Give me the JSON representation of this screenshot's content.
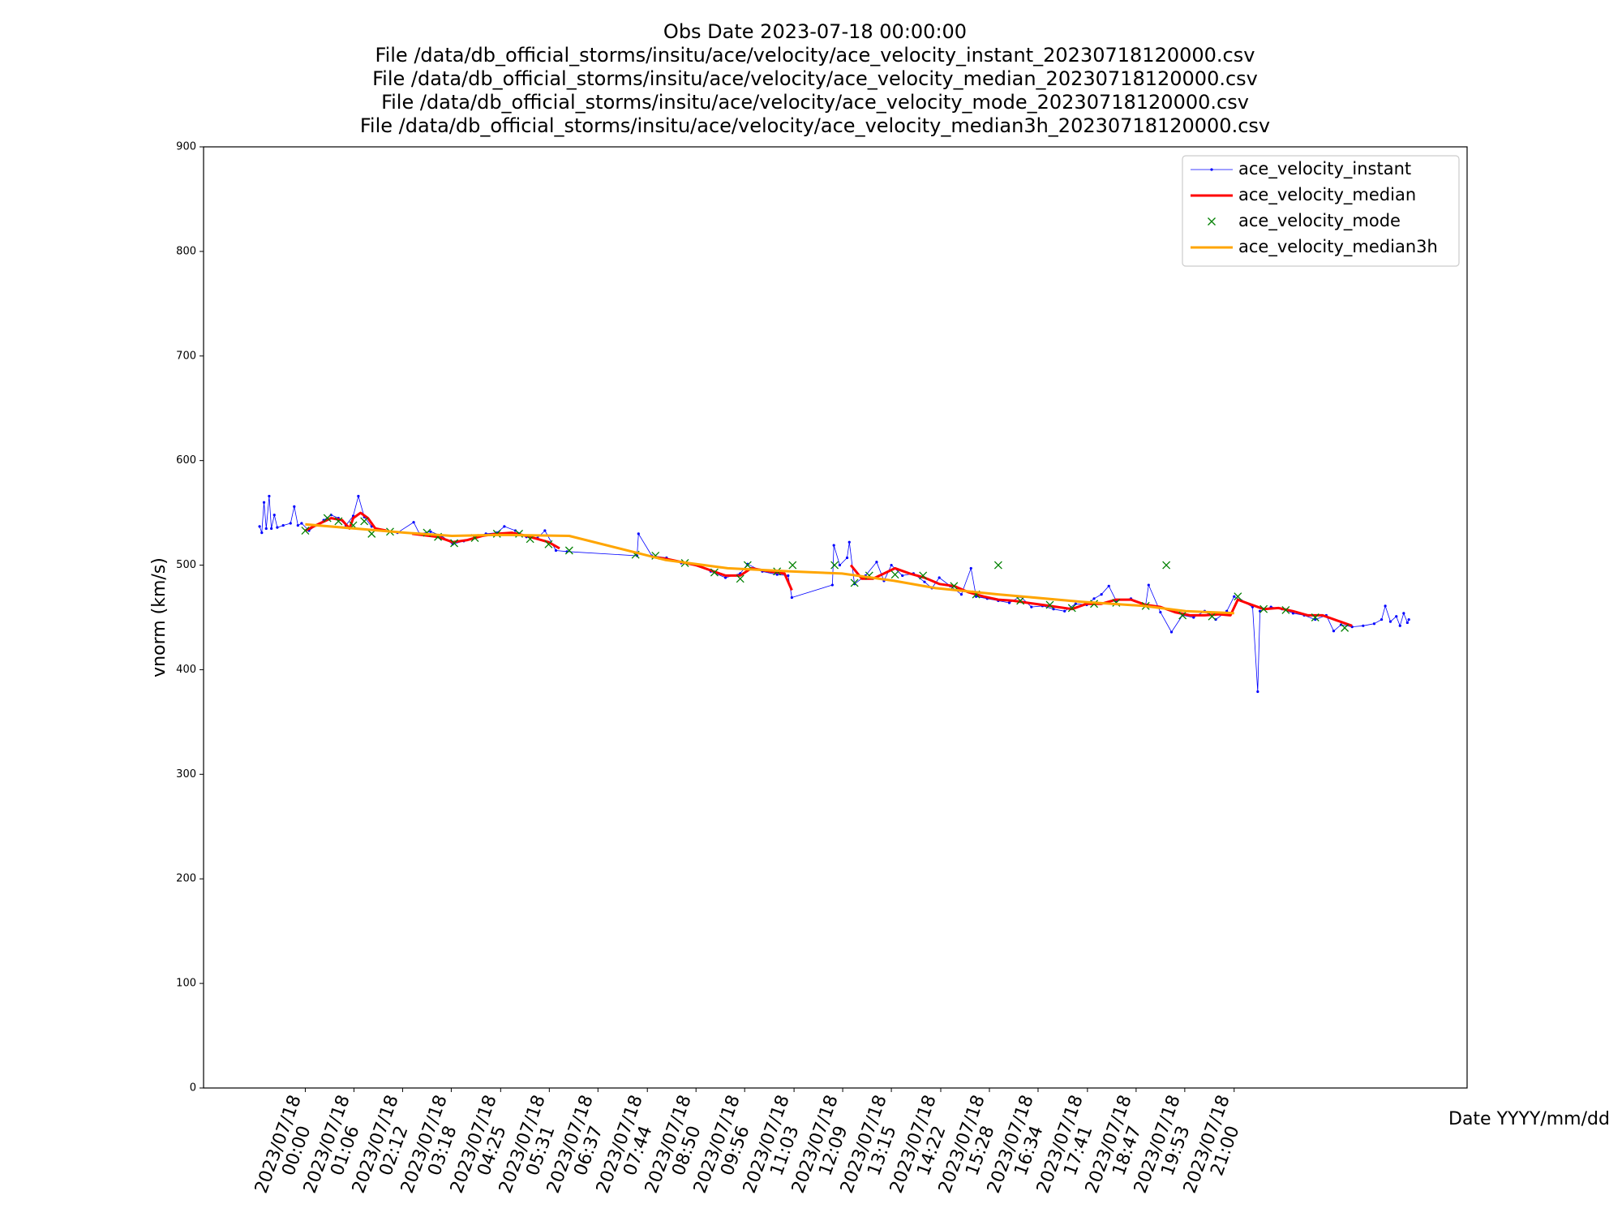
{
  "chart_data": {
    "type": "line",
    "title": [
      "Obs Date 2023-07-18 00:00:00",
      "File /data/db_official_storms/insitu/ace/velocity/ace_velocity_instant_20230718120000.csv",
      "File /data/db_official_storms/insitu/ace/velocity/ace_velocity_median_20230718120000.csv",
      "File /data/db_official_storms/insitu/ace/velocity/ace_velocity_mode_20230718120000.csv",
      "File /data/db_official_storms/insitu/ace/velocity/ace_velocity_median3h_20230718120000.csv"
    ],
    "y_label": "vnorm (km/s)",
    "x_label": "Date YYYY/mm/dd",
    "ylim": [
      0,
      900
    ],
    "yticks": [
      0,
      100,
      200,
      300,
      400,
      500,
      600,
      700,
      800,
      900
    ],
    "xlim": [
      "2023-07-17T21:42",
      "2023-07-19T02:16"
    ],
    "xticks": [
      {
        "value": "2023-07-18T00:00",
        "label": "2023/07/18\n00:00"
      },
      {
        "value": "2023-07-18T01:06",
        "label": "2023/07/18\n01:06"
      },
      {
        "value": "2023-07-18T02:12",
        "label": "2023/07/18\n02:12"
      },
      {
        "value": "2023-07-18T03:18",
        "label": "2023/07/18\n03:18"
      },
      {
        "value": "2023-07-18T04:25",
        "label": "2023/07/18\n04:25"
      },
      {
        "value": "2023-07-18T05:31",
        "label": "2023/07/18\n05:31"
      },
      {
        "value": "2023-07-18T06:37",
        "label": "2023/07/18\n06:37"
      },
      {
        "value": "2023-07-18T07:44",
        "label": "2023/07/18\n07:44"
      },
      {
        "value": "2023-07-18T08:50",
        "label": "2023/07/18\n08:50"
      },
      {
        "value": "2023-07-18T09:56",
        "label": "2023/07/18\n09:56"
      },
      {
        "value": "2023-07-18T11:03",
        "label": "2023/07/18\n11:03"
      },
      {
        "value": "2023-07-18T12:09",
        "label": "2023/07/18\n12:09"
      },
      {
        "value": "2023-07-18T13:15",
        "label": "2023/07/18\n13:15"
      },
      {
        "value": "2023-07-18T14:22",
        "label": "2023/07/18\n14:22"
      },
      {
        "value": "2023-07-18T15:28",
        "label": "2023/07/18\n15:28"
      },
      {
        "value": "2023-07-18T16:34",
        "label": "2023/07/18\n16:34"
      },
      {
        "value": "2023-07-18T17:41",
        "label": "2023/07/18\n17:41"
      },
      {
        "value": "2023-07-18T18:47",
        "label": "2023/07/18\n18:47"
      },
      {
        "value": "2023-07-18T19:53",
        "label": "2023/07/18\n19:53"
      },
      {
        "value": "2023-07-18T21:00",
        "label": "2023/07/18\n21:00"
      }
    ],
    "legend": "upper right",
    "series": [
      {
        "name": "ace_velocity_instant",
        "color": "#0000ff",
        "style": "line-dots",
        "x": [
          "2023-07-17T22:58",
          "2023-07-17T23:01",
          "2023-07-17T23:04",
          "2023-07-17T23:07",
          "2023-07-17T23:11",
          "2023-07-17T23:14",
          "2023-07-17T23:18",
          "2023-07-17T23:22",
          "2023-07-17T23:30",
          "2023-07-17T23:40",
          "2023-07-17T23:45",
          "2023-07-17T23:50",
          "2023-07-17T23:55",
          "2023-07-18T00:05",
          "2023-07-18T00:15",
          "2023-07-18T00:25",
          "2023-07-18T00:35",
          "2023-07-18T00:45",
          "2023-07-18T00:55",
          "2023-07-18T01:05",
          "2023-07-18T01:12",
          "2023-07-18T01:20",
          "2023-07-18T01:30",
          "2023-07-18T01:45",
          "2023-07-18T02:05",
          "2023-07-18T02:27",
          "2023-07-18T02:35",
          "2023-07-18T02:50",
          "2023-07-18T03:05",
          "2023-07-18T03:20",
          "2023-07-18T03:35",
          "2023-07-18T03:50",
          "2023-07-18T04:05",
          "2023-07-18T04:20",
          "2023-07-18T04:30",
          "2023-07-18T04:45",
          "2023-07-18T05:00",
          "2023-07-18T05:15",
          "2023-07-18T05:25",
          "2023-07-18T05:40",
          "2023-07-18T05:55",
          "2023-07-18T07:30",
          "2023-07-18T07:32",
          "2023-07-18T07:50",
          "2023-07-18T08:10",
          "2023-07-18T08:30",
          "2023-07-18T08:50",
          "2023-07-18T09:10",
          "2023-07-18T09:30",
          "2023-07-18T09:50",
          "2023-07-18T10:00",
          "2023-07-18T10:20",
          "2023-07-18T10:40",
          "2023-07-18T10:55",
          "2023-07-18T11:00",
          "2023-07-18T11:55",
          "2023-07-18T11:57",
          "2023-07-18T12:05",
          "2023-07-18T12:15",
          "2023-07-18T12:18",
          "2023-07-18T12:25",
          "2023-07-18T12:40",
          "2023-07-18T12:55",
          "2023-07-18T13:05",
          "2023-07-18T13:15",
          "2023-07-18T13:30",
          "2023-07-18T13:45",
          "2023-07-18T14:00",
          "2023-07-18T14:10",
          "2023-07-18T14:20",
          "2023-07-18T14:35",
          "2023-07-18T14:50",
          "2023-07-18T15:03",
          "2023-07-18T15:10",
          "2023-07-18T15:25",
          "2023-07-18T15:40",
          "2023-07-18T15:55",
          "2023-07-18T16:10",
          "2023-07-18T16:25",
          "2023-07-18T16:40",
          "2023-07-18T16:55",
          "2023-07-18T17:10",
          "2023-07-18T17:25",
          "2023-07-18T17:40",
          "2023-07-18T17:50",
          "2023-07-18T18:00",
          "2023-07-18T18:10",
          "2023-07-18T18:20",
          "2023-07-18T18:40",
          "2023-07-18T19:00",
          "2023-07-18T19:04",
          "2023-07-18T19:20",
          "2023-07-18T19:35",
          "2023-07-18T19:50",
          "2023-07-18T20:05",
          "2023-07-18T20:20",
          "2023-07-18T20:35",
          "2023-07-18T20:50",
          "2023-07-18T21:00",
          "2023-07-18T21:10",
          "2023-07-18T21:25",
          "2023-07-18T21:32",
          "2023-07-18T21:35",
          "2023-07-18T21:50",
          "2023-07-18T22:05",
          "2023-07-18T22:20",
          "2023-07-18T22:35",
          "2023-07-18T22:50",
          "2023-07-18T23:05",
          "2023-07-18T23:15",
          "2023-07-18T23:25",
          "2023-07-18T23:40",
          "2023-07-18T23:55",
          "2023-07-19T00:10",
          "2023-07-19T00:20",
          "2023-07-19T00:25",
          "2023-07-19T00:32",
          "2023-07-19T00:40",
          "2023-07-19T00:45",
          "2023-07-19T00:50",
          "2023-07-19T00:55",
          "2023-07-19T00:57"
        ],
        "values": [
          537,
          531,
          560,
          535,
          566,
          535,
          548,
          536,
          538,
          540,
          556,
          538,
          540,
          533,
          538,
          543,
          548,
          545,
          538,
          547,
          566,
          546,
          537,
          533,
          531,
          541,
          530,
          532,
          528,
          520,
          523,
          527,
          530,
          531,
          537,
          533,
          527,
          526,
          533,
          514,
          513,
          509,
          530,
          509,
          507,
          502,
          500,
          494,
          488,
          492,
          501,
          494,
          491,
          490,
          469,
          481,
          519,
          500,
          507,
          522,
          482,
          490,
          503,
          485,
          500,
          490,
          492,
          484,
          478,
          488,
          480,
          472,
          497,
          470,
          468,
          466,
          464,
          470,
          460,
          461,
          458,
          456,
          463,
          462,
          468,
          472,
          480,
          466,
          468,
          462,
          481,
          455,
          436,
          452,
          450,
          456,
          448,
          456,
          470,
          466,
          460,
          379,
          456,
          460,
          458,
          454,
          452,
          448,
          452,
          437,
          443,
          441,
          442,
          444,
          448,
          461,
          446,
          451,
          442,
          454,
          445,
          448
        ]
      },
      {
        "name": "ace_velocity_median",
        "color": "#ff0000",
        "style": "line",
        "x": [
          "2023-07-18T00:00",
          "2023-07-18T00:20",
          "2023-07-18T00:35",
          "2023-07-18T00:50",
          "2023-07-18T01:00",
          "2023-07-18T01:05",
          "2023-07-18T01:15",
          "2023-07-18T01:25",
          "2023-07-18T01:35",
          "2023-07-18T01:50",
          null,
          "2023-07-18T02:25",
          "2023-07-18T03:00",
          "2023-07-18T03:20",
          "2023-07-18T03:40",
          "2023-07-18T04:00",
          "2023-07-18T04:20",
          "2023-07-18T04:40",
          "2023-07-18T05:00",
          "2023-07-18T05:15",
          "2023-07-18T05:30",
          "2023-07-18T05:45",
          null,
          "2023-07-18T07:50",
          "2023-07-18T08:10",
          "2023-07-18T08:30",
          "2023-07-18T08:50",
          "2023-07-18T09:10",
          "2023-07-18T09:30",
          "2023-07-18T09:50",
          "2023-07-18T10:05",
          "2023-07-18T10:30",
          "2023-07-18T10:50",
          "2023-07-18T11:00",
          null,
          "2023-07-18T12:20",
          "2023-07-18T12:35",
          "2023-07-18T12:50",
          "2023-07-18T13:05",
          "2023-07-18T13:20",
          "2023-07-18T13:40",
          "2023-07-18T14:00",
          "2023-07-18T14:20",
          "2023-07-18T14:40",
          "2023-07-18T15:00",
          "2023-07-18T15:20",
          "2023-07-18T15:40",
          "2023-07-18T16:00",
          "2023-07-18T16:20",
          "2023-07-18T16:40",
          "2023-07-18T17:00",
          "2023-07-18T17:20",
          "2023-07-18T17:40",
          "2023-07-18T18:00",
          "2023-07-18T18:20",
          "2023-07-18T18:40",
          "2023-07-18T19:00",
          "2023-07-18T19:20",
          "2023-07-18T19:40",
          "2023-07-18T20:00",
          "2023-07-18T20:20",
          "2023-07-18T20:40",
          "2023-07-18T20:55",
          "2023-07-18T21:05",
          "2023-07-18T21:20",
          "2023-07-18T21:40",
          "2023-07-18T22:00",
          "2023-07-18T22:20",
          "2023-07-18T22:40",
          "2023-07-18T23:00",
          "2023-07-18T23:20",
          "2023-07-18T23:40"
        ],
        "values": [
          533,
          540,
          545,
          543,
          535,
          545,
          550,
          545,
          535,
          533,
          null,
          530,
          527,
          522,
          524,
          528,
          530,
          531,
          528,
          525,
          522,
          516,
          null,
          508,
          506,
          503,
          500,
          495,
          490,
          490,
          497,
          494,
          492,
          476,
          null,
          500,
          487,
          487,
          492,
          497,
          492,
          488,
          482,
          480,
          474,
          470,
          467,
          466,
          464,
          462,
          460,
          458,
          463,
          463,
          467,
          467,
          462,
          460,
          455,
          452,
          452,
          453,
          452,
          467,
          463,
          458,
          459,
          456,
          452,
          452,
          447,
          442
        ]
      },
      {
        "name": "ace_velocity_mode",
        "color": "#008000",
        "style": "x-markers",
        "x": [
          "2023-07-18T00:00",
          "2023-07-18T00:30",
          "2023-07-18T00:45",
          "2023-07-18T01:05",
          "2023-07-18T01:20",
          "2023-07-18T01:30",
          "2023-07-18T01:55",
          "2023-07-18T02:45",
          "2023-07-18T03:00",
          "2023-07-18T03:22",
          "2023-07-18T03:50",
          "2023-07-18T04:20",
          "2023-07-18T04:50",
          "2023-07-18T05:05",
          "2023-07-18T05:30",
          "2023-07-18T05:58",
          "2023-07-18T07:28",
          "2023-07-18T07:55",
          "2023-07-18T08:35",
          "2023-07-18T09:15",
          "2023-07-18T09:50",
          "2023-07-18T10:00",
          "2023-07-18T10:40",
          "2023-07-18T11:01",
          "2023-07-18T11:58",
          "2023-07-18T12:25",
          "2023-07-18T12:45",
          "2023-07-18T13:20",
          "2023-07-18T13:58",
          "2023-07-18T14:40",
          "2023-07-18T15:10",
          "2023-07-18T15:40",
          "2023-07-18T16:10",
          "2023-07-18T16:50",
          "2023-07-18T17:20",
          "2023-07-18T17:50",
          "2023-07-18T18:20",
          "2023-07-18T19:00",
          "2023-07-18T19:28",
          "2023-07-18T19:50",
          "2023-07-18T20:30",
          "2023-07-18T21:05",
          "2023-07-18T21:40",
          "2023-07-18T22:10",
          "2023-07-18T22:50",
          "2023-07-18T23:30"
        ],
        "values": [
          533,
          545,
          542,
          538,
          542,
          530,
          532,
          531,
          527,
          521,
          526,
          530,
          530,
          525,
          520,
          514,
          510,
          509,
          502,
          493,
          487,
          500,
          494,
          500,
          500,
          483,
          490,
          491,
          490,
          480,
          472,
          500,
          466,
          462,
          459,
          463,
          464,
          461,
          500,
          452,
          451,
          470,
          458,
          457,
          450,
          440
        ]
      },
      {
        "name": "ace_velocity_median3h",
        "color": "#ffa500",
        "style": "line",
        "x": [
          "2023-07-18T00:00",
          "2023-07-18T02:16",
          "2023-07-18T03:19",
          "2023-07-18T04:22",
          "2023-07-18T05:58",
          "2023-07-18T08:08",
          "2023-07-18T09:33",
          "2023-07-18T10:58",
          "2023-07-18T12:08",
          "2023-07-18T13:19",
          "2023-07-18T14:15",
          "2023-07-18T15:40",
          "2023-07-18T17:33",
          "2023-07-18T18:57",
          "2023-07-18T19:54",
          "2023-07-18T21:00"
        ],
        "values": [
          539,
          531,
          528,
          529,
          528,
          505,
          497,
          494,
          492,
          485,
          478,
          472,
          465,
          461,
          456,
          454
        ]
      }
    ]
  }
}
